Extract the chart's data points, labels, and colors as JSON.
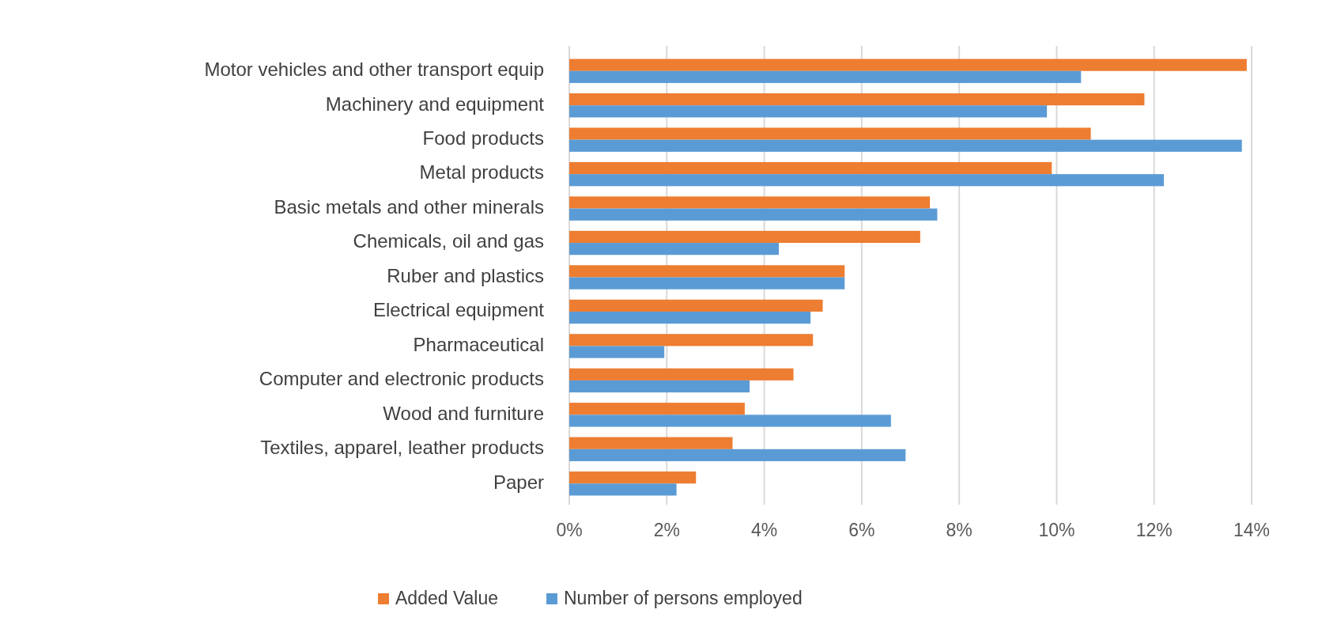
{
  "chart_data": {
    "type": "bar",
    "orientation": "horizontal",
    "categories": [
      "Motor vehicles and other transport equip",
      "Machinery and equipment ",
      "Food products",
      "Metal products",
      "Basic metals and other minerals",
      "Chemicals, oil and gas",
      "Ruber and plastics",
      "Electrical equipment",
      "Pharmaceutical",
      "Computer and electronic products",
      "Wood and furniture",
      "Textiles, apparel, leather products",
      "Paper"
    ],
    "series": [
      {
        "name": "Added Value",
        "color": "#ed7d31",
        "values": [
          13.9,
          11.8,
          10.7,
          9.9,
          7.4,
          7.2,
          5.65,
          5.2,
          5.0,
          4.6,
          3.6,
          3.35,
          2.6
        ]
      },
      {
        "name": "Number of persons employed",
        "color": "#5b9bd5",
        "values": [
          10.5,
          9.8,
          13.8,
          12.2,
          7.55,
          4.3,
          5.65,
          4.95,
          1.95,
          3.7,
          6.6,
          6.9,
          2.2
        ]
      }
    ],
    "xlim": [
      0,
      14
    ],
    "xticks": [
      {
        "value": 0,
        "label": "0%"
      },
      {
        "value": 2,
        "label": "2%"
      },
      {
        "value": 4,
        "label": "4%"
      },
      {
        "value": 6,
        "label": "6%"
      },
      {
        "value": 8,
        "label": "8%"
      },
      {
        "value": 10,
        "label": "10%"
      },
      {
        "value": 12,
        "label": "12%"
      },
      {
        "value": 14,
        "label": "14%"
      }
    ],
    "grid": "x",
    "legend": "bottom"
  }
}
